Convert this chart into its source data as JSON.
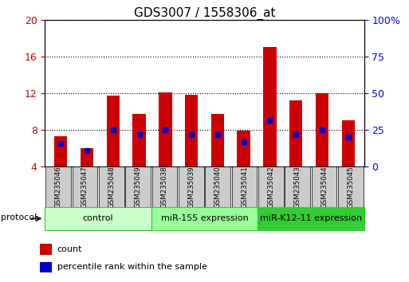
{
  "title": "GDS3007 / 1558306_at",
  "samples": [
    "GSM235046",
    "GSM235047",
    "GSM235048",
    "GSM235049",
    "GSM235038",
    "GSM235039",
    "GSM235040",
    "GSM235041",
    "GSM235042",
    "GSM235043",
    "GSM235044",
    "GSM235045"
  ],
  "bar_heights": [
    7.3,
    6.0,
    11.7,
    9.7,
    12.1,
    11.8,
    9.7,
    7.9,
    17.0,
    11.2,
    12.0,
    9.0
  ],
  "blue_markers": [
    6.5,
    5.7,
    8.0,
    7.5,
    8.0,
    7.5,
    7.5,
    6.7,
    9.0,
    7.5,
    8.0,
    7.2
  ],
  "bar_color": "#cc0000",
  "blue_color": "#0000cc",
  "ylim_left": [
    4,
    20
  ],
  "ylim_right": [
    0,
    100
  ],
  "yticks_left": [
    4,
    8,
    12,
    16,
    20
  ],
  "yticks_right": [
    0,
    25,
    50,
    75,
    100
  ],
  "groups": [
    {
      "label": "control",
      "start": 0,
      "end": 4,
      "color": "#ccffcc"
    },
    {
      "label": "miR-155 expression",
      "start": 4,
      "end": 8,
      "color": "#99ff99"
    },
    {
      "label": "miR-K12-11 expression",
      "start": 8,
      "end": 12,
      "color": "#33cc33"
    }
  ],
  "protocol_label": "protocol",
  "legend_items": [
    {
      "label": "count",
      "color": "#cc0000"
    },
    {
      "label": "percentile rank within the sample",
      "color": "#0000cc"
    }
  ],
  "bar_width": 0.5,
  "bar_bottom": 4.0,
  "left_tick_color": "#cc0000",
  "right_tick_color": "#0000ff",
  "group_border_color": "#33cc33",
  "sample_box_color": "#cccccc"
}
